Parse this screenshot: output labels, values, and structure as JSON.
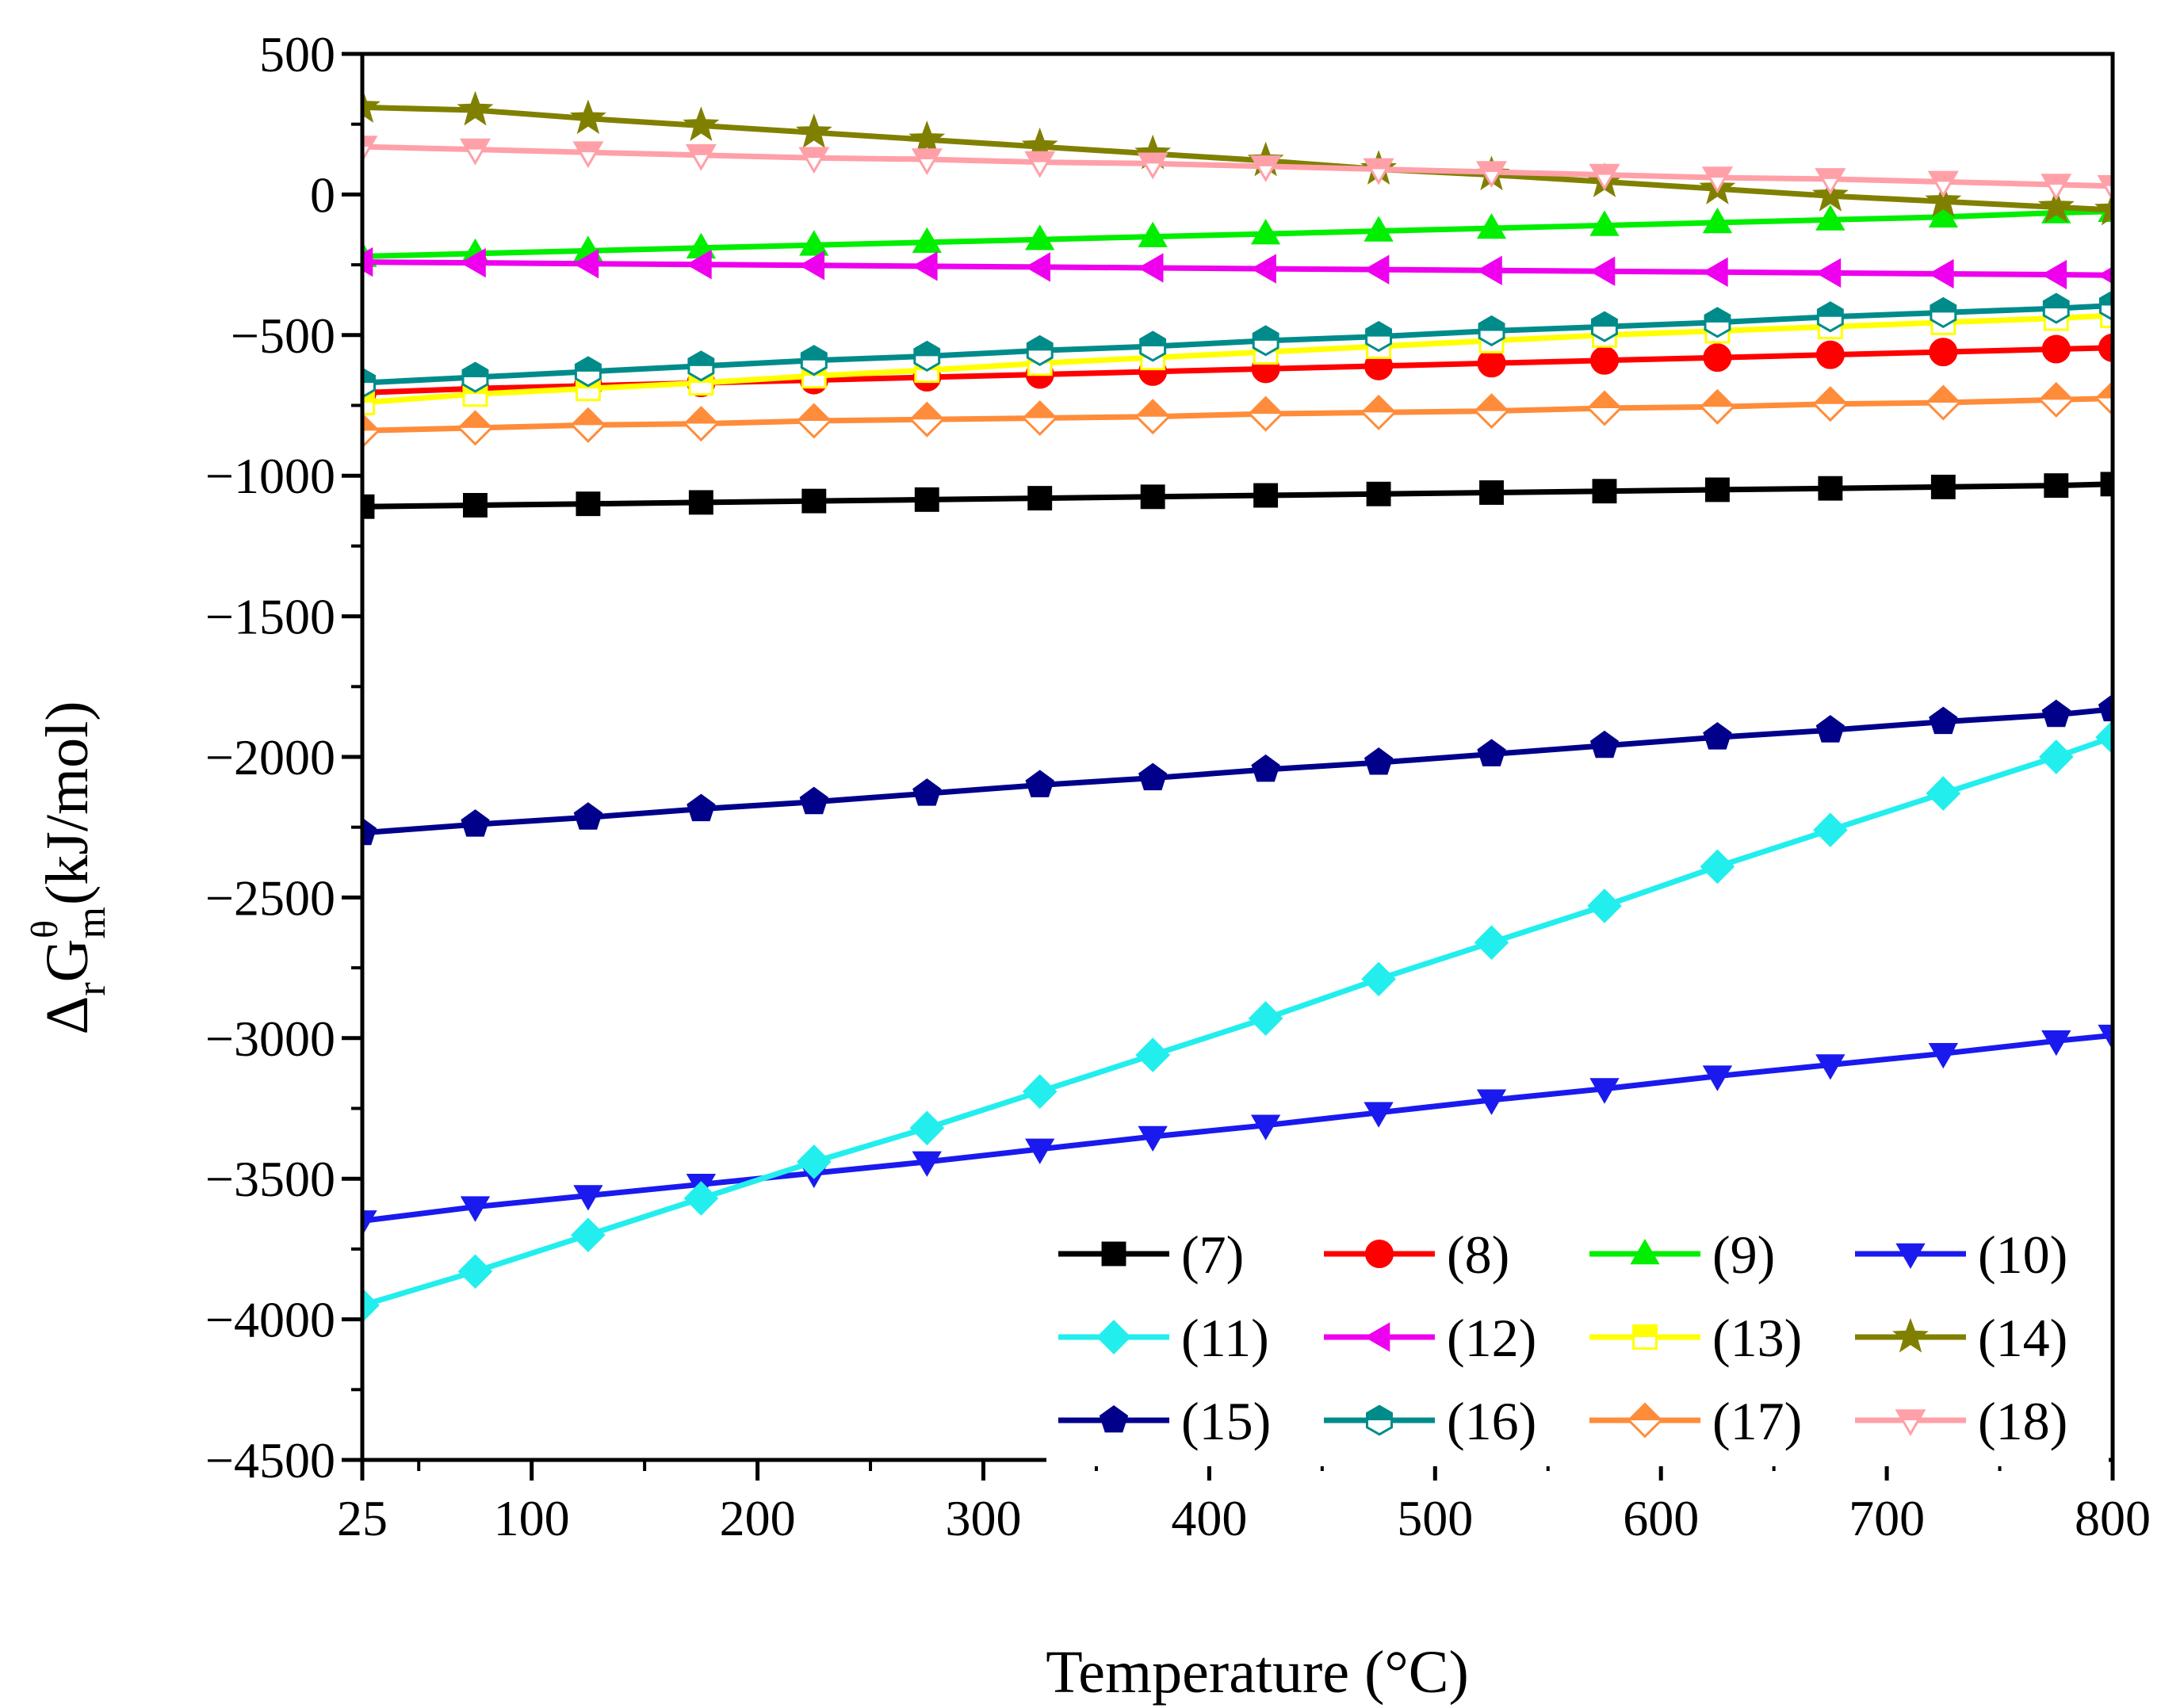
{
  "chart_data": {
    "type": "line",
    "title": "",
    "xlabel": "Temperature (°C)",
    "ylabel_parts": {
      "delta": "Δ",
      "sub_r": "r",
      "G": "G",
      "sub_m": "m",
      "sup": "θ",
      "unit": " (kJ/mol)"
    },
    "xlim": [
      25,
      800
    ],
    "ylim": [
      -4500,
      500
    ],
    "x_ticks": [
      25,
      100,
      200,
      300,
      400,
      500,
      600,
      700,
      800
    ],
    "x_tick_labels": [
      "25",
      "100",
      "200",
      "300",
      "400",
      "500",
      "600",
      "700",
      "800"
    ],
    "y_ticks": [
      500,
      0,
      -500,
      -1000,
      -1500,
      -2000,
      -2500,
      -3000,
      -3500,
      -4000,
      -4500
    ],
    "y_tick_labels": [
      "500",
      "0",
      "−500",
      "−1000",
      "−1500",
      "−2000",
      "−2500",
      "−3000",
      "−3500",
      "−4000",
      "−4500"
    ],
    "x": [
      25,
      75,
      125,
      175,
      225,
      275,
      325,
      375,
      425,
      475,
      525,
      575,
      625,
      675,
      725,
      775,
      800
    ],
    "legend_position": "bottom-right",
    "series": [
      {
        "name": "(7)",
        "color": "#000000",
        "marker": "square",
        "fill": "filled",
        "values": [
          -1110,
          -1105,
          -1100,
          -1095,
          -1090,
          -1085,
          -1080,
          -1075,
          -1070,
          -1065,
          -1060,
          -1055,
          -1050,
          -1045,
          -1040,
          -1035,
          -1030
        ]
      },
      {
        "name": "(8)",
        "color": "#ff0000",
        "marker": "circle",
        "fill": "filled",
        "values": [
          -705,
          -690,
          -680,
          -670,
          -660,
          -650,
          -640,
          -630,
          -620,
          -610,
          -600,
          -590,
          -580,
          -570,
          -560,
          -550,
          -545
        ]
      },
      {
        "name": "(9)",
        "color": "#00ee00",
        "marker": "triangle-up",
        "fill": "filled",
        "values": [
          -220,
          -210,
          -200,
          -190,
          -180,
          -170,
          -160,
          -150,
          -140,
          -130,
          -120,
          -110,
          -100,
          -90,
          -80,
          -65,
          -60
        ]
      },
      {
        "name": "(10)",
        "color": "#1a1aee",
        "marker": "triangle-down",
        "fill": "filled",
        "values": [
          -3650,
          -3600,
          -3560,
          -3520,
          -3480,
          -3440,
          -3395,
          -3350,
          -3310,
          -3265,
          -3220,
          -3180,
          -3135,
          -3095,
          -3055,
          -3010,
          -2990
        ]
      },
      {
        "name": "(11)",
        "color": "#22eeee",
        "marker": "diamond",
        "fill": "filled",
        "values": [
          -3950,
          -3830,
          -3700,
          -3570,
          -3440,
          -3320,
          -3190,
          -3060,
          -2930,
          -2790,
          -2660,
          -2530,
          -2390,
          -2260,
          -2130,
          -2000,
          -1930
        ]
      },
      {
        "name": "(12)",
        "color": "#ee00ee",
        "marker": "triangle-left",
        "fill": "filled",
        "values": [
          -240,
          -243,
          -246,
          -249,
          -252,
          -255,
          -258,
          -261,
          -264,
          -267,
          -270,
          -273,
          -276,
          -279,
          -282,
          -285,
          -287
        ]
      },
      {
        "name": "(13)",
        "color": "#ffff00",
        "marker": "square",
        "fill": "half",
        "values": [
          -740,
          -710,
          -690,
          -670,
          -645,
          -625,
          -600,
          -580,
          -560,
          -540,
          -520,
          -500,
          -485,
          -470,
          -455,
          -440,
          -430
        ]
      },
      {
        "name": "(14)",
        "color": "#808000",
        "marker": "star",
        "fill": "filled",
        "values": [
          310,
          300,
          270,
          245,
          220,
          195,
          170,
          145,
          120,
          90,
          70,
          45,
          20,
          -5,
          -25,
          -45,
          -55
        ]
      },
      {
        "name": "(15)",
        "color": "#00008b",
        "marker": "pentagon",
        "fill": "filled",
        "values": [
          -2270,
          -2240,
          -2215,
          -2185,
          -2160,
          -2130,
          -2100,
          -2075,
          -2045,
          -2020,
          -1990,
          -1960,
          -1930,
          -1905,
          -1875,
          -1850,
          -1830
        ]
      },
      {
        "name": "(16)",
        "color": "#008b8b",
        "marker": "hexagon",
        "fill": "half",
        "values": [
          -670,
          -650,
          -630,
          -610,
          -590,
          -575,
          -555,
          -540,
          -520,
          -505,
          -485,
          -470,
          -455,
          -435,
          -420,
          -405,
          -395
        ]
      },
      {
        "name": "(17)",
        "color": "#ff8c3a",
        "marker": "diamond",
        "fill": "half",
        "values": [
          -840,
          -830,
          -820,
          -815,
          -805,
          -800,
          -795,
          -790,
          -780,
          -775,
          -770,
          -760,
          -755,
          -745,
          -740,
          -730,
          -725
        ]
      },
      {
        "name": "(18)",
        "color": "#ffa0a8",
        "marker": "triangle-down",
        "fill": "half",
        "values": [
          170,
          160,
          150,
          140,
          130,
          125,
          115,
          110,
          100,
          90,
          80,
          70,
          60,
          55,
          45,
          35,
          30
        ]
      }
    ]
  }
}
